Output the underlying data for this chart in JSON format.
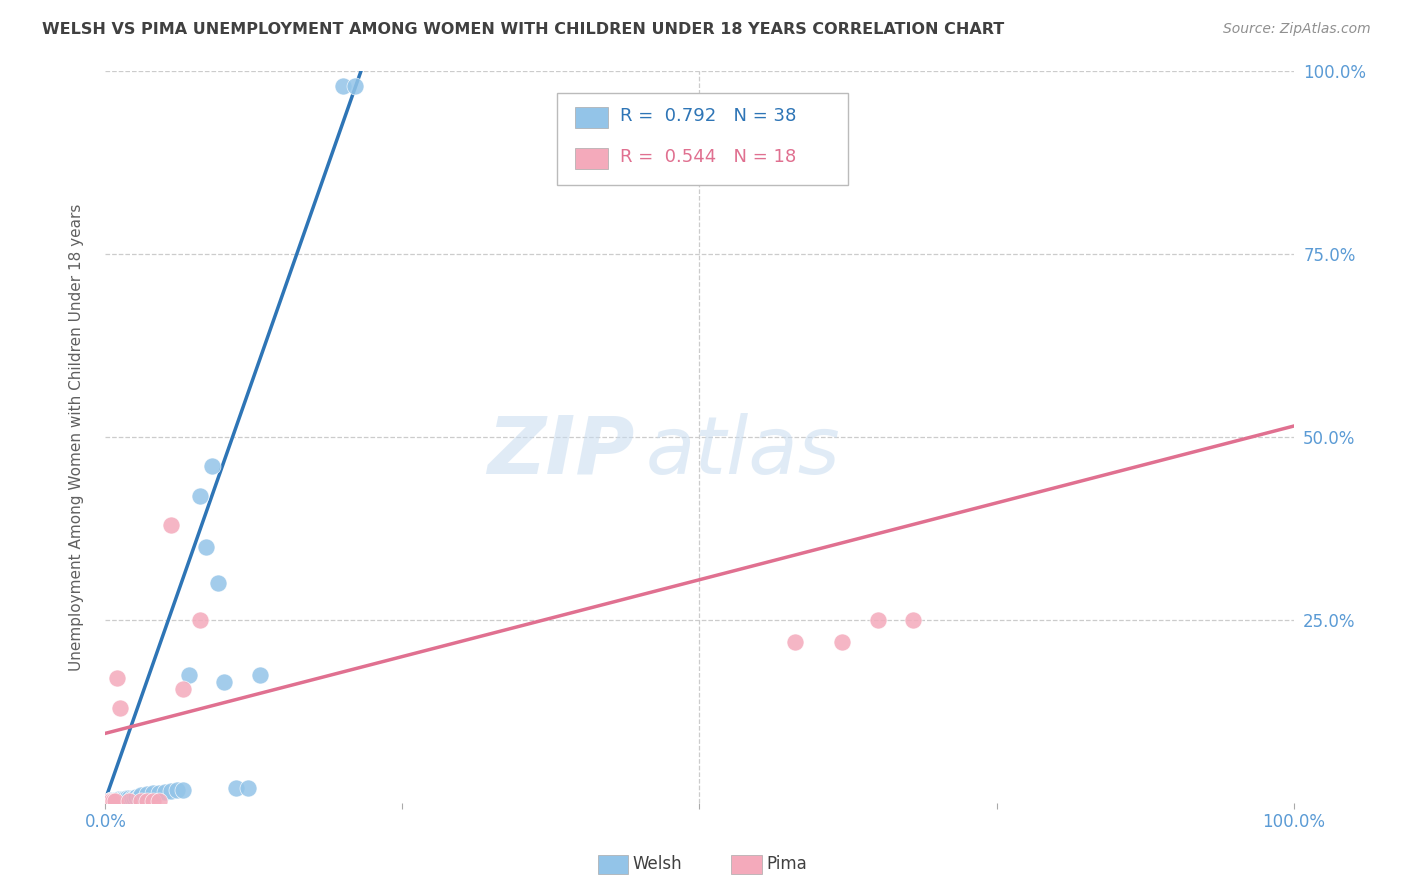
{
  "title": "WELSH VS PIMA UNEMPLOYMENT AMONG WOMEN WITH CHILDREN UNDER 18 YEARS CORRELATION CHART",
  "source": "Source: ZipAtlas.com",
  "ylabel": "Unemployment Among Women with Children Under 18 years",
  "xlim": [
    0,
    1.0
  ],
  "ylim": [
    0,
    1.0
  ],
  "xtick_vals": [
    0.0,
    0.25,
    0.5,
    0.75,
    1.0
  ],
  "xtick_labels": [
    "0.0%",
    "",
    "",
    "",
    "100.0%"
  ],
  "right_ytick_vals": [
    0.25,
    0.5,
    0.75,
    1.0
  ],
  "right_ytick_labels": [
    "25.0%",
    "50.0%",
    "75.0%",
    "100.0%"
  ],
  "welsh_color": "#93C4E8",
  "pima_color": "#F4AABB",
  "welsh_line_color": "#2E75B6",
  "pima_line_color": "#E07090",
  "welsh_R": 0.792,
  "welsh_N": 38,
  "pima_R": 0.544,
  "pima_N": 18,
  "legend_label_welsh": "Welsh",
  "legend_label_pima": "Pima",
  "watermark_zip": "ZIP",
  "watermark_atlas": "atlas",
  "background_color": "#FFFFFF",
  "grid_color": "#CCCCCC",
  "title_color": "#404040",
  "axis_tick_color": "#5B9BD5",
  "welsh_points": [
    [
      0.003,
      0.003
    ],
    [
      0.005,
      0.004
    ],
    [
      0.006,
      0.003
    ],
    [
      0.007,
      0.003
    ],
    [
      0.008,
      0.004
    ],
    [
      0.009,
      0.003
    ],
    [
      0.01,
      0.003
    ],
    [
      0.011,
      0.005
    ],
    [
      0.012,
      0.004
    ],
    [
      0.013,
      0.004
    ],
    [
      0.014,
      0.005
    ],
    [
      0.015,
      0.004
    ],
    [
      0.016,
      0.005
    ],
    [
      0.018,
      0.006
    ],
    [
      0.02,
      0.006
    ],
    [
      0.022,
      0.007
    ],
    [
      0.024,
      0.007
    ],
    [
      0.026,
      0.008
    ],
    [
      0.028,
      0.008
    ],
    [
      0.03,
      0.01
    ],
    [
      0.035,
      0.012
    ],
    [
      0.04,
      0.013
    ],
    [
      0.045,
      0.014
    ],
    [
      0.05,
      0.015
    ],
    [
      0.055,
      0.016
    ],
    [
      0.06,
      0.017
    ],
    [
      0.065,
      0.018
    ],
    [
      0.07,
      0.175
    ],
    [
      0.08,
      0.42
    ],
    [
      0.085,
      0.35
    ],
    [
      0.09,
      0.46
    ],
    [
      0.095,
      0.3
    ],
    [
      0.1,
      0.165
    ],
    [
      0.11,
      0.02
    ],
    [
      0.12,
      0.02
    ],
    [
      0.13,
      0.175
    ],
    [
      0.2,
      0.98
    ],
    [
      0.21,
      0.98
    ]
  ],
  "pima_points": [
    [
      0.003,
      0.003
    ],
    [
      0.005,
      0.003
    ],
    [
      0.006,
      0.003
    ],
    [
      0.008,
      0.003
    ],
    [
      0.01,
      0.17
    ],
    [
      0.012,
      0.13
    ],
    [
      0.02,
      0.003
    ],
    [
      0.03,
      0.003
    ],
    [
      0.035,
      0.003
    ],
    [
      0.04,
      0.003
    ],
    [
      0.045,
      0.003
    ],
    [
      0.055,
      0.38
    ],
    [
      0.065,
      0.155
    ],
    [
      0.08,
      0.25
    ],
    [
      0.62,
      0.22
    ],
    [
      0.65,
      0.25
    ],
    [
      0.68,
      0.25
    ],
    [
      0.58,
      0.22
    ]
  ],
  "welsh_line_pts": [
    [
      0.0,
      0.005
    ],
    [
      0.215,
      1.0
    ]
  ],
  "pima_line_pts": [
    [
      0.0,
      0.095
    ],
    [
      1.0,
      0.515
    ]
  ]
}
